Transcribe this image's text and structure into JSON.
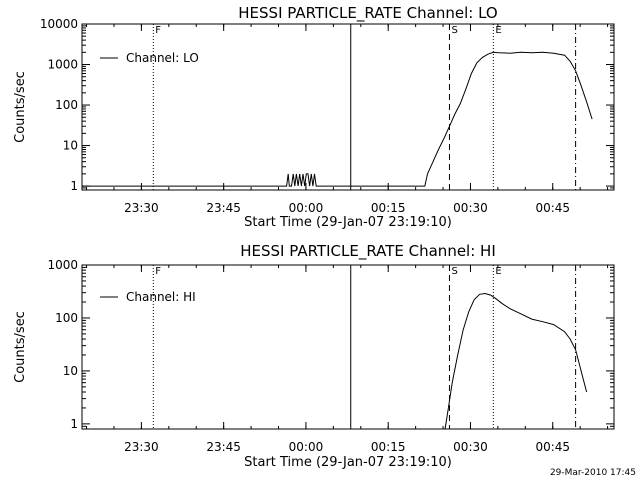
{
  "footer": {
    "timestamp": "29-Mar-2010 17:45"
  },
  "chart_data": [
    {
      "type": "line",
      "title": "HESSI PARTICLE_RATE Channel: LO",
      "xlabel": "Start Time (29-Jan-07 23:19:10)",
      "ylabel": "Counts/sec",
      "yscale": "log",
      "ylim": [
        0.8,
        10000
      ],
      "xlim_minutes_from_start": [
        0,
        97
      ],
      "x_ticks": [
        "23:30",
        "23:45",
        "00:00",
        "00:15",
        "00:30",
        "00:45"
      ],
      "y_ticks": [
        "1",
        "10",
        "100",
        "1000",
        "10000"
      ],
      "legend": {
        "position": "top-left",
        "entries": [
          "Channel: LO"
        ]
      },
      "series": [
        {
          "name": "Channel: LO",
          "x": [
            0,
            37.3,
            37.6,
            37.8,
            38.2,
            38.5,
            38.8,
            39.1,
            39.4,
            39.7,
            40.0,
            40.3,
            40.6,
            40.9,
            41.2,
            41.5,
            41.8,
            42.1,
            42.4,
            42.7,
            43.0,
            43.5,
            62.5,
            63,
            64,
            65,
            66,
            67,
            68,
            69,
            70,
            71,
            72,
            73,
            74,
            75,
            76,
            78,
            80,
            82,
            84,
            86,
            88,
            89,
            90,
            91,
            92,
            93
          ],
          "values": [
            1,
            1,
            2,
            1,
            1,
            2,
            1,
            2,
            1,
            2,
            1,
            2,
            1,
            2,
            2,
            1,
            2,
            1,
            2,
            1,
            1,
            1,
            1,
            2,
            4,
            8,
            15,
            30,
            60,
            110,
            250,
            600,
            1100,
            1500,
            1800,
            2000,
            1950,
            1900,
            2000,
            1950,
            2000,
            1900,
            1700,
            1200,
            700,
            300,
            120,
            45
          ]
        }
      ],
      "markers": [
        {
          "label": "F",
          "x": 13,
          "style": "dotted"
        },
        {
          "label": "",
          "x": 49,
          "style": "solid"
        },
        {
          "label": "S",
          "x": 67,
          "style": "dashed"
        },
        {
          "label": "E",
          "x": 75,
          "style": "dotted"
        },
        {
          "label": "",
          "x": 90,
          "style": "dashdot"
        }
      ]
    },
    {
      "type": "line",
      "title": "HESSI PARTICLE_RATE Channel: HI",
      "xlabel": "Start Time (29-Jan-07 23:19:10)",
      "ylabel": "Counts/sec",
      "yscale": "log",
      "ylim": [
        0.8,
        1000
      ],
      "xlim_minutes_from_start": [
        0,
        97
      ],
      "x_ticks": [
        "23:30",
        "23:45",
        "00:00",
        "00:15",
        "00:30",
        "00:45"
      ],
      "y_ticks": [
        "1",
        "10",
        "100",
        "1000"
      ],
      "legend": {
        "position": "top-left",
        "entries": [
          "Channel: HI"
        ]
      },
      "series": [
        {
          "name": "Channel: HI",
          "x": [
            66.2,
            66.8,
            67.5,
            68.5,
            69.5,
            70.5,
            71.5,
            72.5,
            73.5,
            74.5,
            75.5,
            76.5,
            78,
            80,
            82,
            84,
            86,
            88,
            89,
            90,
            91,
            92
          ],
          "values": [
            0.8,
            2,
            6,
            20,
            60,
            130,
            220,
            280,
            290,
            270,
            230,
            190,
            150,
            120,
            95,
            85,
            75,
            55,
            40,
            25,
            10,
            4
          ]
        }
      ],
      "markers": [
        {
          "label": "F",
          "x": 13,
          "style": "dotted"
        },
        {
          "label": "",
          "x": 49,
          "style": "solid"
        },
        {
          "label": "S",
          "x": 67,
          "style": "dashed"
        },
        {
          "label": "E",
          "x": 75,
          "style": "dotted"
        },
        {
          "label": "",
          "x": 90,
          "style": "dashdot"
        }
      ]
    }
  ]
}
